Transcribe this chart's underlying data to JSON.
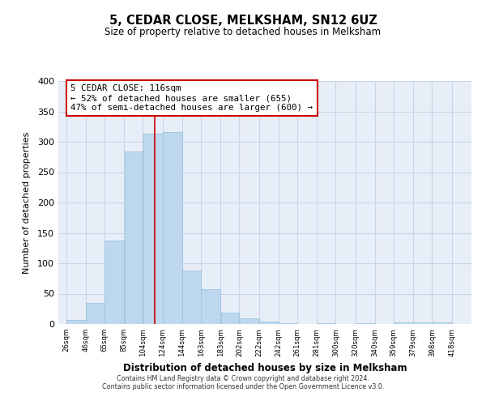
{
  "title": "5, CEDAR CLOSE, MELKSHAM, SN12 6UZ",
  "subtitle": "Size of property relative to detached houses in Melksham",
  "xlabel": "Distribution of detached houses by size in Melksham",
  "ylabel": "Number of detached properties",
  "bar_values": [
    7,
    35,
    138,
    284,
    313,
    316,
    88,
    57,
    19,
    9,
    4,
    2,
    0,
    2,
    0,
    1,
    0,
    3
  ],
  "bar_left_edges": [
    26,
    46,
    65,
    85,
    104,
    124,
    144,
    163,
    183,
    202,
    222,
    242,
    261,
    281,
    300,
    320,
    340,
    359
  ],
  "bar_widths": [
    20,
    19,
    20,
    19,
    20,
    20,
    19,
    20,
    19,
    20,
    20,
    19,
    20,
    19,
    20,
    20,
    19,
    59
  ],
  "tick_labels": [
    "26sqm",
    "46sqm",
    "65sqm",
    "85sqm",
    "104sqm",
    "124sqm",
    "144sqm",
    "163sqm",
    "183sqm",
    "202sqm",
    "222sqm",
    "242sqm",
    "261sqm",
    "281sqm",
    "300sqm",
    "320sqm",
    "340sqm",
    "359sqm",
    "379sqm",
    "398sqm",
    "418sqm"
  ],
  "tick_positions": [
    26,
    46,
    65,
    85,
    104,
    124,
    144,
    163,
    183,
    202,
    222,
    242,
    261,
    281,
    300,
    320,
    340,
    359,
    379,
    398,
    418
  ],
  "ylim": [
    0,
    400
  ],
  "xlim": [
    18,
    438
  ],
  "bar_color": "#bdd7ee",
  "bar_edge_color": "#9fc5de",
  "vertical_line_x": 116,
  "vertical_line_color": "#cc0000",
  "annotation_title": "5 CEDAR CLOSE: 116sqm",
  "annotation_line1": "← 52% of detached houses are smaller (655)",
  "annotation_line2": "47% of semi-detached houses are larger (600) →",
  "annotation_box_color": "#cc0000",
  "grid_color": "#c8d4e8",
  "background_color": "#e8eef8",
  "footer_line1": "Contains HM Land Registry data © Crown copyright and database right 2024.",
  "footer_line2": "Contains public sector information licensed under the Open Government Licence v3.0."
}
